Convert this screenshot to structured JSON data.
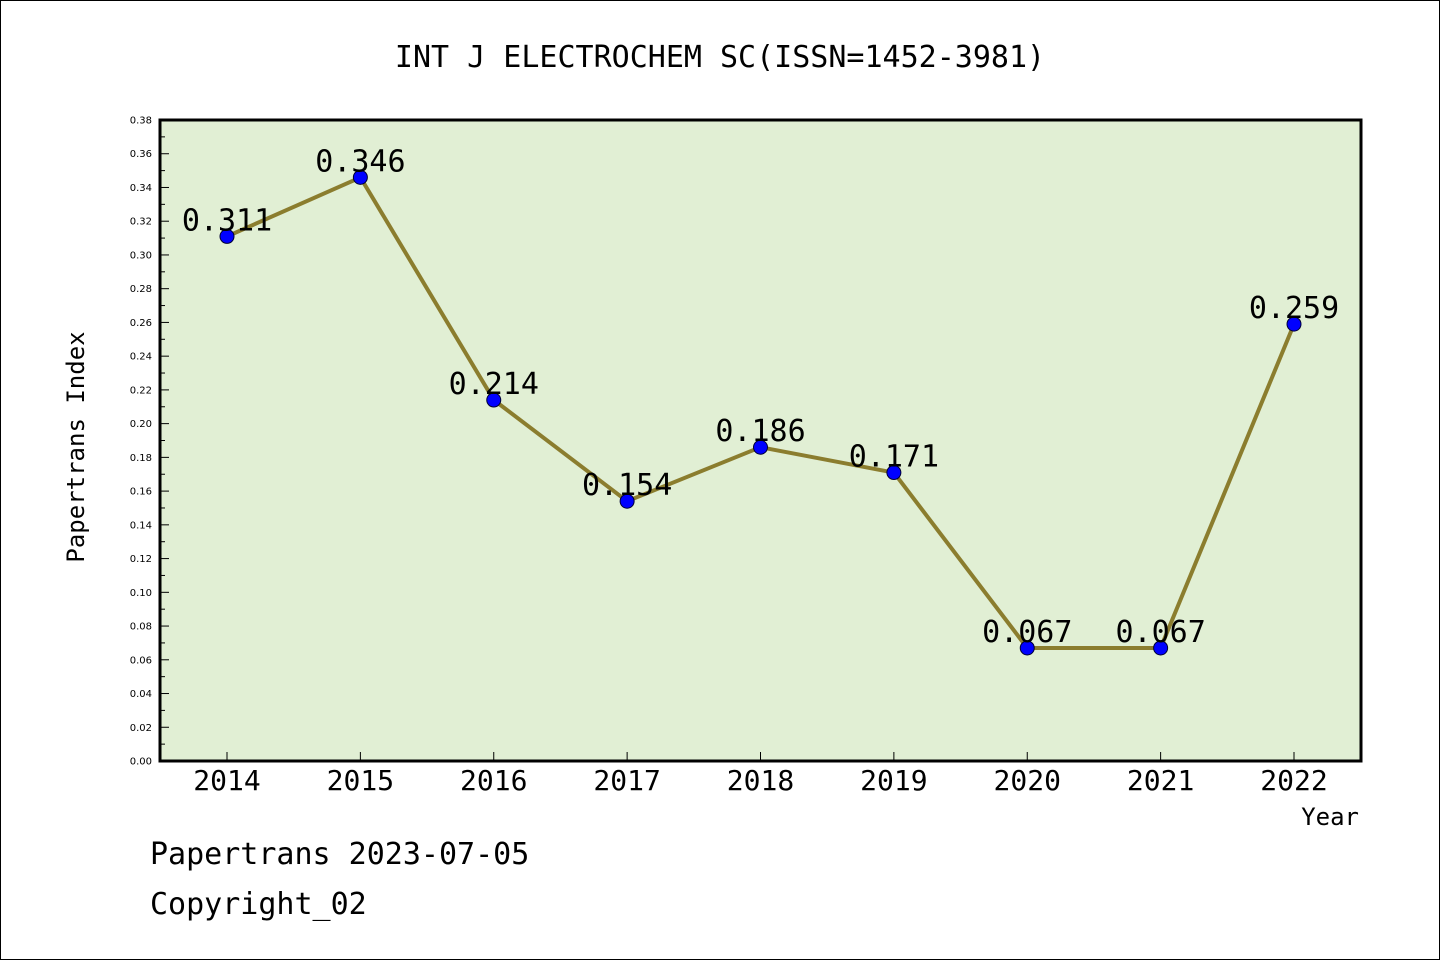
{
  "chart_data": {
    "type": "line",
    "title": "INT J ELECTROCHEM SC(ISSN=1452-3981)",
    "xlabel": "Year",
    "ylabel": "Papertrans Index",
    "categories": [
      "2014",
      "2015",
      "2016",
      "2017",
      "2018",
      "2019",
      "2020",
      "2021",
      "2022"
    ],
    "values": [
      0.311,
      0.346,
      0.214,
      0.154,
      0.186,
      0.171,
      0.067,
      0.067,
      0.259
    ],
    "data_labels": [
      "0.311",
      "0.346",
      "0.214",
      "0.154",
      "0.186",
      "0.171",
      "0.067",
      "0.067",
      "0.259"
    ],
    "ylim": [
      0,
      0.38
    ],
    "yticks": [
      "0.00",
      "0.02",
      "0.04",
      "0.06",
      "0.08",
      "0.10",
      "0.12",
      "0.14",
      "0.16",
      "0.18",
      "0.20",
      "0.22",
      "0.24",
      "0.26",
      "0.28",
      "0.30",
      "0.32",
      "0.34",
      "0.36",
      "0.38"
    ],
    "grid": false,
    "colors": {
      "plot_background": "#e1efd4",
      "line": "#8b7d2e",
      "marker": "#0000ff"
    }
  },
  "footer": {
    "line1": "Papertrans 2023-07-05",
    "line2": "Copyright_02"
  }
}
